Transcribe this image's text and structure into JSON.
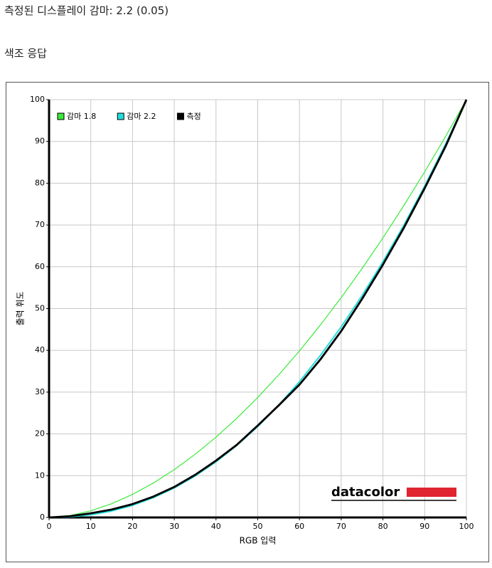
{
  "header": {
    "title": "측정된 디스플레이 감마: 2.2 (0.05)",
    "subtitle": "색조 응답"
  },
  "chart_data": {
    "type": "line",
    "x_label": "RGB 입력",
    "y_label": "출력 휘도",
    "logo": "datacolor",
    "x": [
      0,
      5,
      10,
      15,
      20,
      25,
      30,
      35,
      40,
      45,
      50,
      55,
      60,
      65,
      70,
      75,
      80,
      85,
      90,
      95,
      100
    ],
    "series": [
      {
        "name": "감마 1.8",
        "color": "#3aea3a",
        "values": [
          0,
          0.45,
          1.58,
          3.29,
          5.52,
          8.25,
          11.45,
          15.11,
          19.22,
          23.76,
          28.72,
          34.09,
          39.87,
          46.05,
          52.62,
          59.58,
          66.92,
          74.64,
          82.72,
          91.18,
          100
        ]
      },
      {
        "name": "감마 2.2",
        "color": "#22dede",
        "values": [
          0,
          0.14,
          0.63,
          1.54,
          2.9,
          4.74,
          7.08,
          9.93,
          13.32,
          17.26,
          21.76,
          26.84,
          32.5,
          38.76,
          45.62,
          53.11,
          61.21,
          69.94,
          79.31,
          89.33,
          100
        ]
      },
      {
        "name": "측정",
        "color": "#000000",
        "values": [
          0,
          0.3,
          1,
          1.9,
          3.2,
          5,
          7.3,
          10.2,
          13.6,
          17.4,
          22,
          26.8,
          31.8,
          37.8,
          44.6,
          52.3,
          60.5,
          69.3,
          78.8,
          88.8,
          100
        ]
      }
    ],
    "xlim": [
      0,
      100
    ],
    "ylim": [
      0,
      100
    ],
    "xticks": [
      0,
      10,
      20,
      30,
      40,
      50,
      60,
      70,
      80,
      90,
      100
    ],
    "yticks": [
      0,
      10,
      20,
      30,
      40,
      50,
      60,
      70,
      80,
      90,
      100
    ],
    "grid": true,
    "legend": "upper left"
  }
}
